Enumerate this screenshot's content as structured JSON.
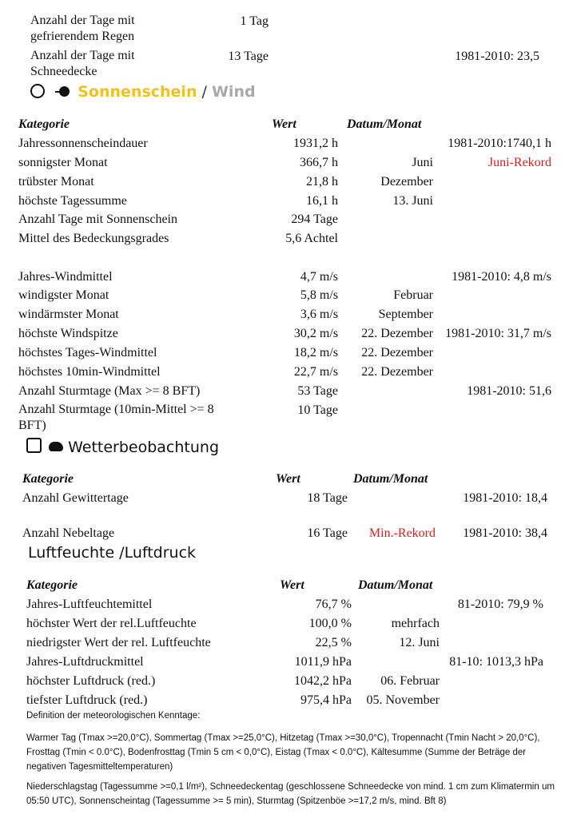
{
  "top_rows": [
    {
      "label": "Anzahl der Tage mit gefrierendem Regen",
      "value": "1 Tag",
      "note": ""
    },
    {
      "label": "Anzahl der Tage mit Schneedecke",
      "value": "13 Tage",
      "note": "1981-2010: 23,5"
    }
  ],
  "sun_wind": {
    "title_sun": "Sonnenschein",
    "title_sep": " / ",
    "title_wind": "Wind",
    "colors": {
      "sun": "#f2c01a",
      "wind": "#a8a8a8",
      "record": "#d42020"
    },
    "icons": [
      "sun-icon",
      "wind-icon"
    ],
    "headers": {
      "category": "Kategorie",
      "value": "Wert",
      "date": "Datum/Monat"
    },
    "rows": [
      {
        "label": "Jahressonnenscheindauer",
        "value": "1931,2 h",
        "date": "",
        "note": "1981-2010:1740,1 h"
      },
      {
        "label": "sonnigster Monat",
        "value": "366,7 h",
        "date": "Juni",
        "note": "Juni-Rekord"
      },
      {
        "label": "trübster Monat",
        "value": "21,8 h",
        "date": "Dezember",
        "note": ""
      },
      {
        "label": "höchste Tagessumme",
        "value": "16,1 h",
        "date": "13. Juni",
        "note": ""
      },
      {
        "label": "Anzahl Tage mit Sonnenschein",
        "value": "294 Tage",
        "date": "",
        "note": ""
      },
      {
        "label": "Mittel des Bedeckungsgrades",
        "value": "5,6 Achtel",
        "date": "",
        "note": ""
      },
      {
        "label": "Jahres-Windmittel",
        "value": "4,7 m/s",
        "date": "",
        "note": "1981-2010: 4,8 m/s"
      },
      {
        "label": "windigster Monat",
        "value": "5,8 m/s",
        "date": "Februar",
        "note": ""
      },
      {
        "label": "windärmster Monat",
        "value": "3,6 m/s",
        "date": "September",
        "note": ""
      },
      {
        "label": "höchste Windspitze",
        "value": "30,2 m/s",
        "date": "22. Dezember",
        "note": "1981-2010: 31,7 m/s"
      },
      {
        "label": "höchstes Tages-Windmittel",
        "value": "18,2 m/s",
        "date": "22. Dezember",
        "note": ""
      },
      {
        "label": "höchstes 10min-Windmittel",
        "value": "22,7 m/s",
        "date": "22. Dezember",
        "note": ""
      },
      {
        "label": "Anzahl Sturmtage (Max >= 8 BFT)",
        "value": "53 Tage",
        "date": "",
        "note": "1981-2010: 51,6"
      },
      {
        "label": "Anzahl Sturmtage (10min-Mittel >= 8 BFT)",
        "value": "10 Tage",
        "date": "",
        "note": ""
      }
    ]
  },
  "observation": {
    "title": "Wetterbeobachtung",
    "icons": [
      "landscape-icon",
      "thunderstorm-icon"
    ],
    "headers": {
      "category": "Kategorie",
      "value": "Wert",
      "date": "Datum/Monat"
    },
    "rows": [
      {
        "label": "Anzahl Gewittertage",
        "value": "18 Tage",
        "date": "",
        "note": "1981-2010: 18,4"
      },
      {
        "label": "Anzahl Nebeltage",
        "value": "16 Tage",
        "date": "Min.-Rekord",
        "note": "1981-2010: 38,4"
      }
    ]
  },
  "humidity": {
    "title": "Luftfeuchte /Luftdruck",
    "headers": {
      "category": "Kategorie",
      "value": "Wert",
      "date": "Datum/Monat"
    },
    "rows": [
      {
        "label": "Jahres-Luftfeuchtemittel",
        "value": "76,7 %",
        "date": "",
        "note": "81-2010: 79,9 %"
      },
      {
        "label": "höchster Wert der rel.Luftfeuchte",
        "value": "100,0 %",
        "date": "mehrfach",
        "note": ""
      },
      {
        "label": "niedrigster Wert der rel. Luftfeuchte",
        "value": "22,5 %",
        "date": "12. Juni",
        "note": ""
      },
      {
        "label": "Jahres-Luftdruckmittel",
        "value": "1011,9 hPa",
        "date": "",
        "note": "81-10: 1013,3 hPa"
      },
      {
        "label": "höchster Luftdruck (red.)",
        "value": "1042,2 hPa",
        "date": "06. Februar",
        "note": ""
      },
      {
        "label": "tiefster Luftdruck (red.)",
        "value": "975,4 hPa",
        "date": "05. November",
        "note": ""
      }
    ]
  },
  "definitions": {
    "title": "Definition der meteorologischen Kenntage:",
    "p1": "Warmer Tag (Tmax >=20,0°C), Sommertag (Tmax >=25,0°C), Hitzetag (Tmax >=30,0°C), Tropennacht (Tmin Nacht > 20,0°C), Frosttag (Tmin < 0.0°C), Bodenfrosttag (Tmin 5 cm < 0,0°C), Eistag (Tmax < 0.0°C), Kältesumme (Summe der Beträge der negativen Tagesmitteltemperaturen)",
    "p2": "Niederschlagstag (Tagessumme >=0,1 l/m²), Schneedeckentag (geschlossene Schneedecke von mind. 1 cm zum Klimatermin um 05:50 UTC), Sonnenscheintag (Tagessumme >= 5 min), Sturmtag (Spitzenböe >=17,2 m/s, mind. Bft 8)"
  }
}
